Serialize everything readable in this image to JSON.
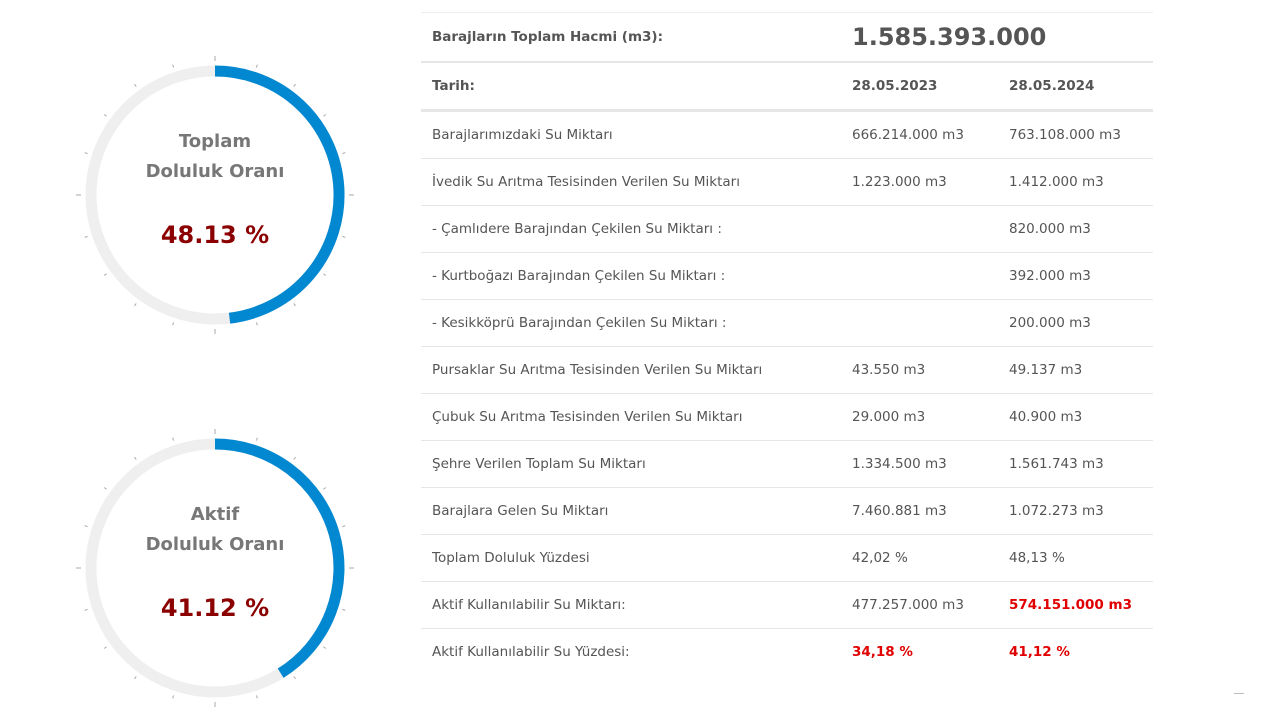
{
  "gauges": [
    {
      "label_line1": "Toplam",
      "label_line2": "Doluluk Oranı",
      "value_text": "48.13 %",
      "fill_percent": 48.13
    },
    {
      "label_line1": "Aktif",
      "label_line2": "Doluluk Oranı",
      "value_text": "41.12 %",
      "fill_percent": 41.12
    }
  ],
  "colors": {
    "arc_fill": "#0288d1",
    "arc_track": "#efefef",
    "tick": "#aaaaaa",
    "gauge_value": "#8b0000",
    "highlight_red": "#e00000"
  },
  "table": {
    "total_label": "Barajların Toplam Hacmi (m3):",
    "total_value": "1.585.393.000",
    "date_label": "Tarih:",
    "date_1": "28.05.2023",
    "date_2": "28.05.2024",
    "rows": [
      {
        "label": "Barajlarımızdaki Su Miktarı",
        "v1": "666.214.000 m3",
        "v2": "763.108.000 m3"
      },
      {
        "label": "İvedik Su Arıtma Tesisinden Verilen Su Miktarı",
        "v1": "1.223.000 m3",
        "v2": "1.412.000 m3"
      },
      {
        "label": "- Çamlıdere Barajından Çekilen Su Miktarı :",
        "v1": "",
        "v2": "820.000 m3"
      },
      {
        "label": "- Kurtboğazı Barajından Çekilen Su Miktarı :",
        "v1": "",
        "v2": "392.000 m3"
      },
      {
        "label": "- Kesikköprü Barajından Çekilen Su Miktarı :",
        "v1": "",
        "v2": "200.000 m3"
      },
      {
        "label": "Pursaklar Su Arıtma Tesisinden Verilen Su Miktarı",
        "v1": "43.550 m3",
        "v2": "49.137 m3"
      },
      {
        "label": "Çubuk Su Arıtma Tesisinden Verilen Su Miktarı",
        "v1": "29.000 m3",
        "v2": "40.900 m3"
      },
      {
        "label": "Şehre Verilen Toplam Su Miktarı",
        "v1": "1.334.500 m3",
        "v2": "1.561.743 m3"
      },
      {
        "label": "Barajlara Gelen Su Miktarı",
        "v1": "7.460.881 m3",
        "v2": "1.072.273 m3"
      },
      {
        "label": "Toplam Doluluk Yüzdesi",
        "v1": "42,02 %",
        "v2": "48,13 %"
      },
      {
        "label": "Aktif Kullanılabilir Su Miktarı:",
        "v1": "477.257.000 m3",
        "v2": "574.151.000 m3",
        "v2_red": true
      },
      {
        "label": "Aktif Kullanılabilir Su Yüzdesi:",
        "v1": "34,18 %",
        "v2": "41,12 %",
        "v1_red": true,
        "v2_red": true
      }
    ]
  }
}
